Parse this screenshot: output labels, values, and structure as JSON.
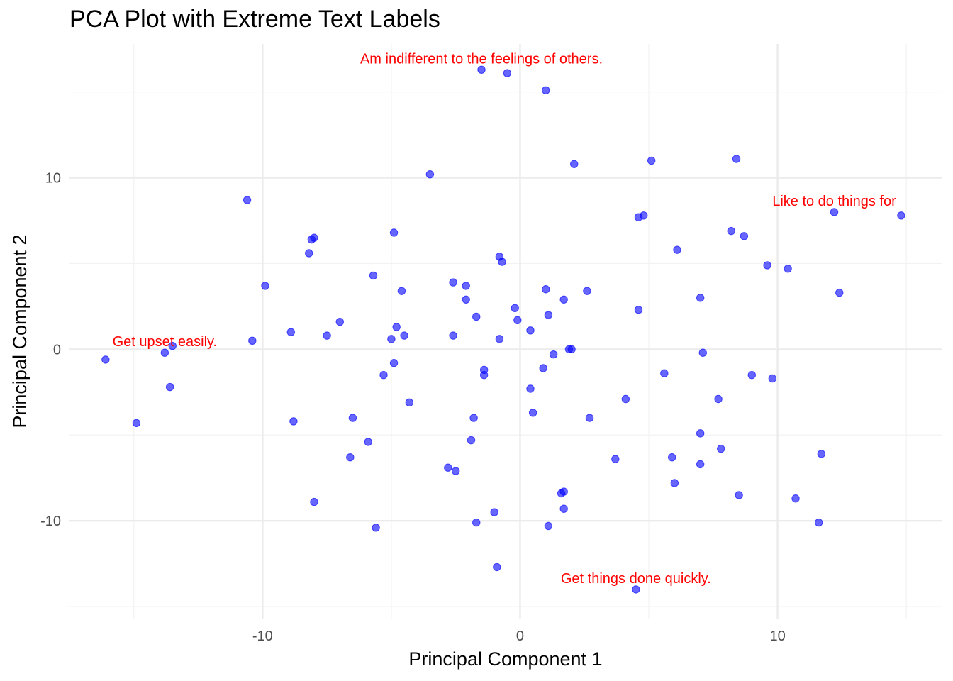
{
  "chart_data": {
    "type": "scatter",
    "title": "PCA Plot with Extreme Text Labels",
    "xlabel": "Principal Component 1",
    "ylabel": "Principal Component 2",
    "xlim": [
      -17.5,
      16.4
    ],
    "ylim": [
      -15.7,
      17.8
    ],
    "x_ticks": [
      -10,
      0,
      10
    ],
    "y_ticks": [
      -10,
      0,
      10
    ],
    "grid": true,
    "point_color": "#0000ff",
    "label_color": "#ff0000",
    "points": [
      {
        "x": -1.5,
        "y": 16.3
      },
      {
        "x": -0.5,
        "y": 16.1
      },
      {
        "x": 1.0,
        "y": 15.1
      },
      {
        "x": 2.1,
        "y": 10.8
      },
      {
        "x": 5.1,
        "y": 11.0
      },
      {
        "x": 8.4,
        "y": 11.1
      },
      {
        "x": -3.5,
        "y": 10.2
      },
      {
        "x": -10.6,
        "y": 8.7
      },
      {
        "x": 12.2,
        "y": 8.0
      },
      {
        "x": 14.8,
        "y": 7.8
      },
      {
        "x": 4.6,
        "y": 7.7
      },
      {
        "x": 4.8,
        "y": 7.8
      },
      {
        "x": 8.2,
        "y": 6.9
      },
      {
        "x": 8.7,
        "y": 6.6
      },
      {
        "x": -4.9,
        "y": 6.8
      },
      {
        "x": -8.0,
        "y": 6.5
      },
      {
        "x": -8.1,
        "y": 6.4
      },
      {
        "x": -8.2,
        "y": 5.6
      },
      {
        "x": -0.8,
        "y": 5.4
      },
      {
        "x": -0.7,
        "y": 5.1
      },
      {
        "x": 6.1,
        "y": 5.8
      },
      {
        "x": 9.6,
        "y": 4.9
      },
      {
        "x": 10.4,
        "y": 4.7
      },
      {
        "x": -5.7,
        "y": 4.3
      },
      {
        "x": -9.9,
        "y": 3.7
      },
      {
        "x": -4.6,
        "y": 3.4
      },
      {
        "x": -2.6,
        "y": 3.9
      },
      {
        "x": -2.1,
        "y": 3.7
      },
      {
        "x": 1.0,
        "y": 3.5
      },
      {
        "x": 2.6,
        "y": 3.4
      },
      {
        "x": 12.4,
        "y": 3.3
      },
      {
        "x": 7.0,
        "y": 3.0
      },
      {
        "x": -2.1,
        "y": 2.9
      },
      {
        "x": 1.7,
        "y": 2.9
      },
      {
        "x": -0.2,
        "y": 2.4
      },
      {
        "x": 4.6,
        "y": 2.3
      },
      {
        "x": -1.7,
        "y": 1.9
      },
      {
        "x": 1.1,
        "y": 2.0
      },
      {
        "x": -7.0,
        "y": 1.6
      },
      {
        "x": -0.1,
        "y": 1.7
      },
      {
        "x": -4.8,
        "y": 1.3
      },
      {
        "x": 0.4,
        "y": 1.1
      },
      {
        "x": -8.9,
        "y": 1.0
      },
      {
        "x": -7.5,
        "y": 0.8
      },
      {
        "x": -2.6,
        "y": 0.8
      },
      {
        "x": -4.5,
        "y": 0.8
      },
      {
        "x": -5.0,
        "y": 0.6
      },
      {
        "x": -0.8,
        "y": 0.6
      },
      {
        "x": -10.4,
        "y": 0.5
      },
      {
        "x": -13.5,
        "y": 0.2
      },
      {
        "x": -13.8,
        "y": -0.2
      },
      {
        "x": 1.9,
        "y": 0.0
      },
      {
        "x": 2.0,
        "y": 0.0
      },
      {
        "x": 1.3,
        "y": -0.3
      },
      {
        "x": 7.1,
        "y": -0.2
      },
      {
        "x": -16.1,
        "y": -0.6
      },
      {
        "x": -4.9,
        "y": -0.8
      },
      {
        "x": 0.9,
        "y": -1.1
      },
      {
        "x": -1.4,
        "y": -1.2
      },
      {
        "x": -5.3,
        "y": -1.5
      },
      {
        "x": -1.4,
        "y": -1.5
      },
      {
        "x": 5.6,
        "y": -1.4
      },
      {
        "x": 9.0,
        "y": -1.5
      },
      {
        "x": 9.8,
        "y": -1.7
      },
      {
        "x": -13.6,
        "y": -2.2
      },
      {
        "x": 0.4,
        "y": -2.3
      },
      {
        "x": -4.3,
        "y": -3.1
      },
      {
        "x": 4.1,
        "y": -2.9
      },
      {
        "x": 7.7,
        "y": -2.9
      },
      {
        "x": 0.5,
        "y": -3.7
      },
      {
        "x": -14.9,
        "y": -4.3
      },
      {
        "x": -6.5,
        "y": -4.0
      },
      {
        "x": -1.8,
        "y": -4.0
      },
      {
        "x": 2.7,
        "y": -4.0
      },
      {
        "x": -8.8,
        "y": -4.2
      },
      {
        "x": 7.0,
        "y": -4.9
      },
      {
        "x": -5.9,
        "y": -5.4
      },
      {
        "x": -1.9,
        "y": -5.3
      },
      {
        "x": 7.8,
        "y": -5.8
      },
      {
        "x": 11.7,
        "y": -6.1
      },
      {
        "x": -6.6,
        "y": -6.3
      },
      {
        "x": 3.7,
        "y": -6.4
      },
      {
        "x": 5.9,
        "y": -6.3
      },
      {
        "x": 7.0,
        "y": -6.7
      },
      {
        "x": -2.8,
        "y": -6.9
      },
      {
        "x": -2.5,
        "y": -7.1
      },
      {
        "x": 6.0,
        "y": -7.8
      },
      {
        "x": 1.7,
        "y": -8.3
      },
      {
        "x": 1.6,
        "y": -8.4
      },
      {
        "x": 8.5,
        "y": -8.5
      },
      {
        "x": -8.0,
        "y": -8.9
      },
      {
        "x": 10.7,
        "y": -8.7
      },
      {
        "x": 1.7,
        "y": -9.3
      },
      {
        "x": -1.0,
        "y": -9.5
      },
      {
        "x": -1.7,
        "y": -10.1
      },
      {
        "x": 1.1,
        "y": -10.3
      },
      {
        "x": -5.6,
        "y": -10.4
      },
      {
        "x": 11.6,
        "y": -10.1
      },
      {
        "x": -0.9,
        "y": -12.7
      },
      {
        "x": 4.5,
        "y": -14.0
      }
    ],
    "annotations": [
      {
        "text": "Am indifferent to the feelings of others.",
        "x": -1.5,
        "y": 16.3
      },
      {
        "text": "Like to do things for",
        "x": 12.2,
        "y": 8.0
      },
      {
        "text": "Get upset easily.",
        "x": -13.8,
        "y": -0.2
      },
      {
        "text": "Get things done quickly.",
        "x": 4.5,
        "y": -14.0
      }
    ]
  }
}
